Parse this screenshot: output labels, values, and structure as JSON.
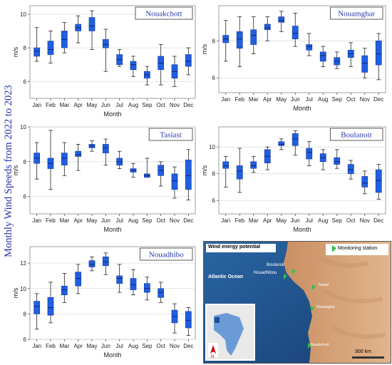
{
  "figure_title": "Monthly Wind Speeds from 2022 to 2023",
  "chart_data": [
    {
      "type": "box",
      "title": "Nouakchott",
      "xlabel": "Month",
      "ylabel": "m/s",
      "categories": [
        "Jan",
        "Feb",
        "Mar",
        "Apr",
        "May",
        "Jun",
        "Jul",
        "Aug",
        "Sep",
        "Oct",
        "Nov",
        "Dec"
      ],
      "ylim": [
        5,
        10.5
      ],
      "yticks": [
        6,
        8,
        10
      ],
      "boxes": [
        {
          "min": 7.2,
          "q1": 7.5,
          "median": 7.8,
          "q3": 8.0,
          "max": 9.2
        },
        {
          "min": 7.1,
          "q1": 7.6,
          "median": 7.9,
          "q3": 8.4,
          "max": 9.0
        },
        {
          "min": 7.7,
          "q1": 8.0,
          "median": 8.5,
          "q3": 9.0,
          "max": 9.5
        },
        {
          "min": 8.3,
          "q1": 9.0,
          "median": 9.2,
          "q3": 9.4,
          "max": 9.9
        },
        {
          "min": 7.9,
          "q1": 9.0,
          "median": 9.3,
          "q3": 9.8,
          "max": 10.2
        },
        {
          "min": 6.6,
          "q1": 8.0,
          "median": 8.2,
          "q3": 8.5,
          "max": 9.1
        },
        {
          "min": 6.9,
          "q1": 7.0,
          "median": 7.3,
          "q3": 7.6,
          "max": 7.9
        },
        {
          "min": 6.3,
          "q1": 6.7,
          "median": 7.0,
          "q3": 7.2,
          "max": 7.5
        },
        {
          "min": 5.8,
          "q1": 6.2,
          "median": 6.4,
          "q3": 6.6,
          "max": 6.9
        },
        {
          "min": 5.8,
          "q1": 6.7,
          "median": 7.1,
          "q3": 7.5,
          "max": 8.2
        },
        {
          "min": 5.7,
          "q1": 6.2,
          "median": 6.6,
          "q3": 7.0,
          "max": 7.5
        },
        {
          "min": 6.4,
          "q1": 6.9,
          "median": 7.2,
          "q3": 7.6,
          "max": 8.0
        }
      ]
    },
    {
      "type": "box",
      "title": "Nouamghar",
      "xlabel": "Month",
      "ylabel": "m/s",
      "categories": [
        "Jan",
        "Feb",
        "Mar",
        "Apr",
        "May",
        "Jun",
        "Jul",
        "Aug",
        "Sep",
        "Oct",
        "Nov",
        "Dec"
      ],
      "ylim": [
        5.2,
        9.9
      ],
      "yticks": [
        6,
        8
      ],
      "boxes": [
        {
          "min": 6.9,
          "q1": 7.9,
          "median": 8.1,
          "q3": 8.3,
          "max": 9.1
        },
        {
          "min": 6.6,
          "q1": 7.6,
          "median": 8.1,
          "q3": 8.5,
          "max": 9.3
        },
        {
          "min": 7.3,
          "q1": 7.8,
          "median": 8.3,
          "q3": 8.6,
          "max": 9.3
        },
        {
          "min": 8.0,
          "q1": 8.6,
          "median": 8.7,
          "q3": 8.9,
          "max": 9.3
        },
        {
          "min": 8.5,
          "q1": 9.0,
          "median": 9.1,
          "q3": 9.3,
          "max": 9.6
        },
        {
          "min": 7.7,
          "q1": 8.1,
          "median": 8.4,
          "q3": 8.8,
          "max": 9.5
        },
        {
          "min": 7.2,
          "q1": 7.5,
          "median": 7.7,
          "q3": 7.8,
          "max": 8.4
        },
        {
          "min": 6.6,
          "q1": 6.9,
          "median": 7.2,
          "q3": 7.4,
          "max": 7.7
        },
        {
          "min": 6.5,
          "q1": 6.7,
          "median": 6.9,
          "q3": 7.1,
          "max": 7.4
        },
        {
          "min": 6.6,
          "q1": 7.1,
          "median": 7.3,
          "q3": 7.5,
          "max": 7.9
        },
        {
          "min": 6.0,
          "q1": 6.3,
          "median": 6.8,
          "q3": 7.2,
          "max": 7.6
        },
        {
          "min": 5.9,
          "q1": 6.7,
          "median": 7.3,
          "q3": 8.0,
          "max": 8.4
        }
      ]
    },
    {
      "type": "box",
      "title": "Tasiast",
      "xlabel": "Month",
      "ylabel": "m/s",
      "categories": [
        "Jan",
        "Feb",
        "Mar",
        "Apr",
        "May",
        "Jun",
        "Jul",
        "Aug",
        "Sep",
        "Oct",
        "Nov",
        "Dec"
      ],
      "ylim": [
        5.0,
        10.0
      ],
      "yticks": [
        6,
        8,
        10
      ],
      "boxes": [
        {
          "min": 7.0,
          "q1": 7.9,
          "median": 8.2,
          "q3": 8.5,
          "max": 9.1
        },
        {
          "min": 6.4,
          "q1": 7.6,
          "median": 7.9,
          "q3": 8.2,
          "max": 9.8
        },
        {
          "min": 7.2,
          "q1": 7.8,
          "median": 8.2,
          "q3": 8.5,
          "max": 9.1
        },
        {
          "min": 7.5,
          "q1": 8.3,
          "median": 8.4,
          "q3": 8.6,
          "max": 9.0
        },
        {
          "min": 8.6,
          "q1": 8.8,
          "median": 8.9,
          "q3": 9.0,
          "max": 9.2
        },
        {
          "min": 7.8,
          "q1": 8.5,
          "median": 8.8,
          "q3": 9.0,
          "max": 9.3
        },
        {
          "min": 7.6,
          "q1": 7.8,
          "median": 8.0,
          "q3": 8.2,
          "max": 8.6
        },
        {
          "min": 7.1,
          "q1": 7.4,
          "median": 7.5,
          "q3": 7.6,
          "max": 7.9
        },
        {
          "min": 7.1,
          "q1": 7.1,
          "median": 7.2,
          "q3": 7.3,
          "max": 8.2
        },
        {
          "min": 6.6,
          "q1": 7.2,
          "median": 7.5,
          "q3": 7.8,
          "max": 8.0
        },
        {
          "min": 5.9,
          "q1": 6.4,
          "median": 6.9,
          "q3": 7.3,
          "max": 7.7
        },
        {
          "min": 5.8,
          "q1": 6.4,
          "median": 7.2,
          "q3": 8.1,
          "max": 8.7
        }
      ]
    },
    {
      "type": "box",
      "title": "Boulanoir",
      "xlabel": "Month",
      "ylabel": "m/s",
      "categories": [
        "Jan",
        "Feb",
        "Mar",
        "Apr",
        "May",
        "Jun",
        "Jul",
        "Aug",
        "Sep",
        "Oct",
        "Nov",
        "Dec"
      ],
      "ylim": [
        5.0,
        11.5
      ],
      "yticks": [
        6,
        8,
        10
      ],
      "boxes": [
        {
          "min": 7.0,
          "q1": 8.4,
          "median": 8.6,
          "q3": 8.9,
          "max": 9.3
        },
        {
          "min": 6.6,
          "q1": 7.6,
          "median": 8.2,
          "q3": 8.6,
          "max": 9.9
        },
        {
          "min": 8.1,
          "q1": 8.4,
          "median": 8.6,
          "q3": 8.9,
          "max": 9.3
        },
        {
          "min": 8.3,
          "q1": 8.8,
          "median": 9.3,
          "q3": 9.8,
          "max": 10.0
        },
        {
          "min": 9.8,
          "q1": 10.1,
          "median": 10.2,
          "q3": 10.4,
          "max": 10.6
        },
        {
          "min": 9.4,
          "q1": 10.1,
          "median": 10.6,
          "q3": 11.0,
          "max": 11.2
        },
        {
          "min": 8.6,
          "q1": 9.1,
          "median": 9.6,
          "q3": 9.9,
          "max": 10.4
        },
        {
          "min": 8.3,
          "q1": 8.9,
          "median": 9.2,
          "q3": 9.5,
          "max": 9.8
        },
        {
          "min": 8.4,
          "q1": 8.7,
          "median": 8.9,
          "q3": 9.2,
          "max": 9.8
        },
        {
          "min": 7.6,
          "q1": 8.0,
          "median": 8.3,
          "q3": 8.7,
          "max": 9.0
        },
        {
          "min": 6.5,
          "q1": 7.0,
          "median": 7.3,
          "q3": 7.8,
          "max": 8.2
        },
        {
          "min": 6.1,
          "q1": 6.6,
          "median": 7.5,
          "q3": 8.3,
          "max": 8.7
        }
      ]
    },
    {
      "type": "box",
      "title": "Nouadhibo",
      "xlabel": "Month",
      "ylabel": "m/s",
      "categories": [
        "Jan",
        "Feb",
        "Mar",
        "Apr",
        "May",
        "Jun",
        "Jul",
        "Aug",
        "Sep",
        "Oct",
        "Nov",
        "Dec"
      ],
      "ylim": [
        6.0,
        13.3
      ],
      "yticks": [
        6,
        8,
        10,
        12
      ],
      "boxes": [
        {
          "min": 6.8,
          "q1": 8.0,
          "median": 8.6,
          "q3": 9.0,
          "max": 9.6
        },
        {
          "min": 7.3,
          "q1": 7.9,
          "median": 8.5,
          "q3": 9.3,
          "max": 10.5
        },
        {
          "min": 8.9,
          "q1": 9.5,
          "median": 9.9,
          "q3": 10.2,
          "max": 11.2
        },
        {
          "min": 9.6,
          "q1": 10.2,
          "median": 10.8,
          "q3": 11.3,
          "max": 11.9
        },
        {
          "min": 11.4,
          "q1": 11.7,
          "median": 11.9,
          "q3": 12.2,
          "max": 12.5
        },
        {
          "min": 11.1,
          "q1": 11.8,
          "median": 12.1,
          "q3": 12.5,
          "max": 12.8
        },
        {
          "min": 9.7,
          "q1": 10.4,
          "median": 10.8,
          "q3": 11.0,
          "max": 11.9
        },
        {
          "min": 9.5,
          "q1": 9.9,
          "median": 10.3,
          "q3": 10.8,
          "max": 11.5
        },
        {
          "min": 9.1,
          "q1": 9.7,
          "median": 10.0,
          "q3": 10.4,
          "max": 10.9
        },
        {
          "min": 8.9,
          "q1": 9.3,
          "median": 9.7,
          "q3": 10.0,
          "max": 10.5
        },
        {
          "min": 6.5,
          "q1": 7.3,
          "median": 7.8,
          "q3": 8.3,
          "max": 8.8
        },
        {
          "min": 6.3,
          "q1": 6.9,
          "median": 7.5,
          "q3": 8.2,
          "max": 8.5
        }
      ]
    }
  ],
  "map": {
    "title": "Wind energy potential",
    "legend_label": "Monitoring station",
    "ocean_label": "Atlantic Ocean",
    "north_label": "N",
    "scale_label": "300 km",
    "stations": [
      "Boulanoir",
      "Nouadhibou",
      "Tasiast",
      "Nouamghar",
      "Nouakchott"
    ],
    "colors": {
      "ocean": "#1b4f86",
      "land": "#d9a57a",
      "marker": "#2bc24a"
    }
  }
}
